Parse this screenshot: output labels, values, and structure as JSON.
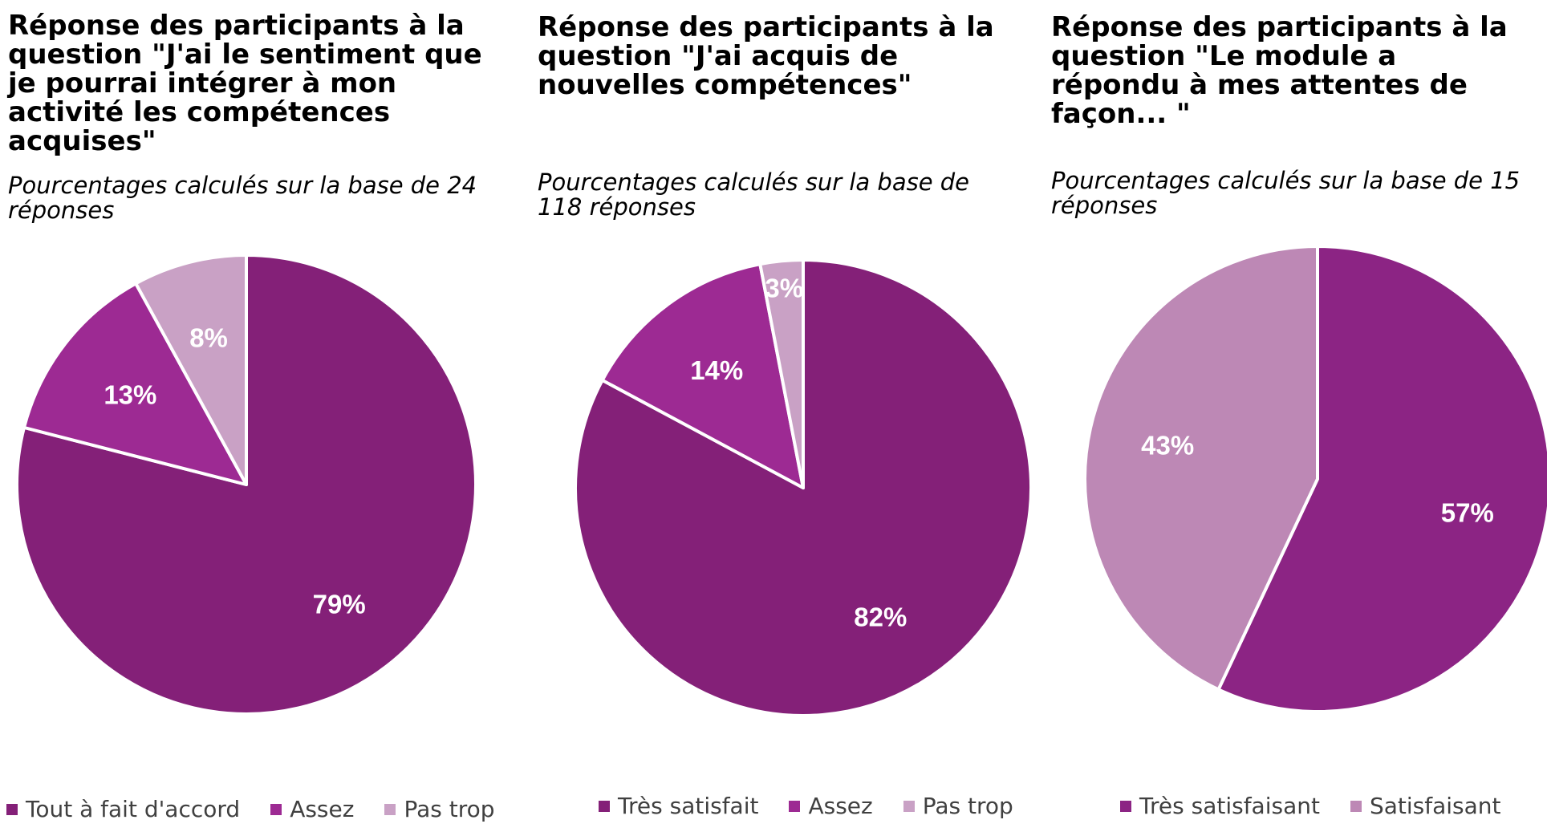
{
  "chart_data": [
    {
      "type": "pie",
      "title": "Réponse des participants à la question \"J'ai le sentiment que je pourrai intégrer à mon activité les compétences acquises\"",
      "subtitle": "Pourcentages calculés sur la base de 24 réponses",
      "slices": [
        {
          "label": "Tout à fait d'accord",
          "value": 79,
          "display": "79%",
          "color": "#842078"
        },
        {
          "label": "Assez",
          "value": 13,
          "display": "13%",
          "color": "#9d2a93"
        },
        {
          "label": "Pas trop",
          "value": 8,
          "display": "8%",
          "color": "#c9a1c5"
        }
      ],
      "legend_position": "bottom"
    },
    {
      "type": "pie",
      "title": "Réponse des participants à la question \"J'ai acquis de nouvelles compétences\"",
      "subtitle": "Pourcentages calculés sur la base de 118 réponses",
      "slices": [
        {
          "label": "Très satisfait",
          "value": 82,
          "display": "82%",
          "color": "#842078"
        },
        {
          "label": "Assez",
          "value": 14,
          "display": "14%",
          "color": "#9d2a93"
        },
        {
          "label": "Pas trop",
          "value": 3,
          "display": "3%",
          "color": "#c9a1c5"
        }
      ],
      "legend_position": "bottom"
    },
    {
      "type": "pie",
      "title": "Réponse des participants à la question \"Le module a répondu à mes attentes de façon... \"",
      "subtitle": "Pourcentages calculés sur la base de 15 réponses",
      "slices": [
        {
          "label": "Très satisfaisant",
          "value": 57,
          "display": "57%",
          "color": "#8c2484"
        },
        {
          "label": "Satisfaisant",
          "value": 43,
          "display": "43%",
          "color": "#bd88b5"
        }
      ],
      "legend_position": "bottom"
    }
  ]
}
